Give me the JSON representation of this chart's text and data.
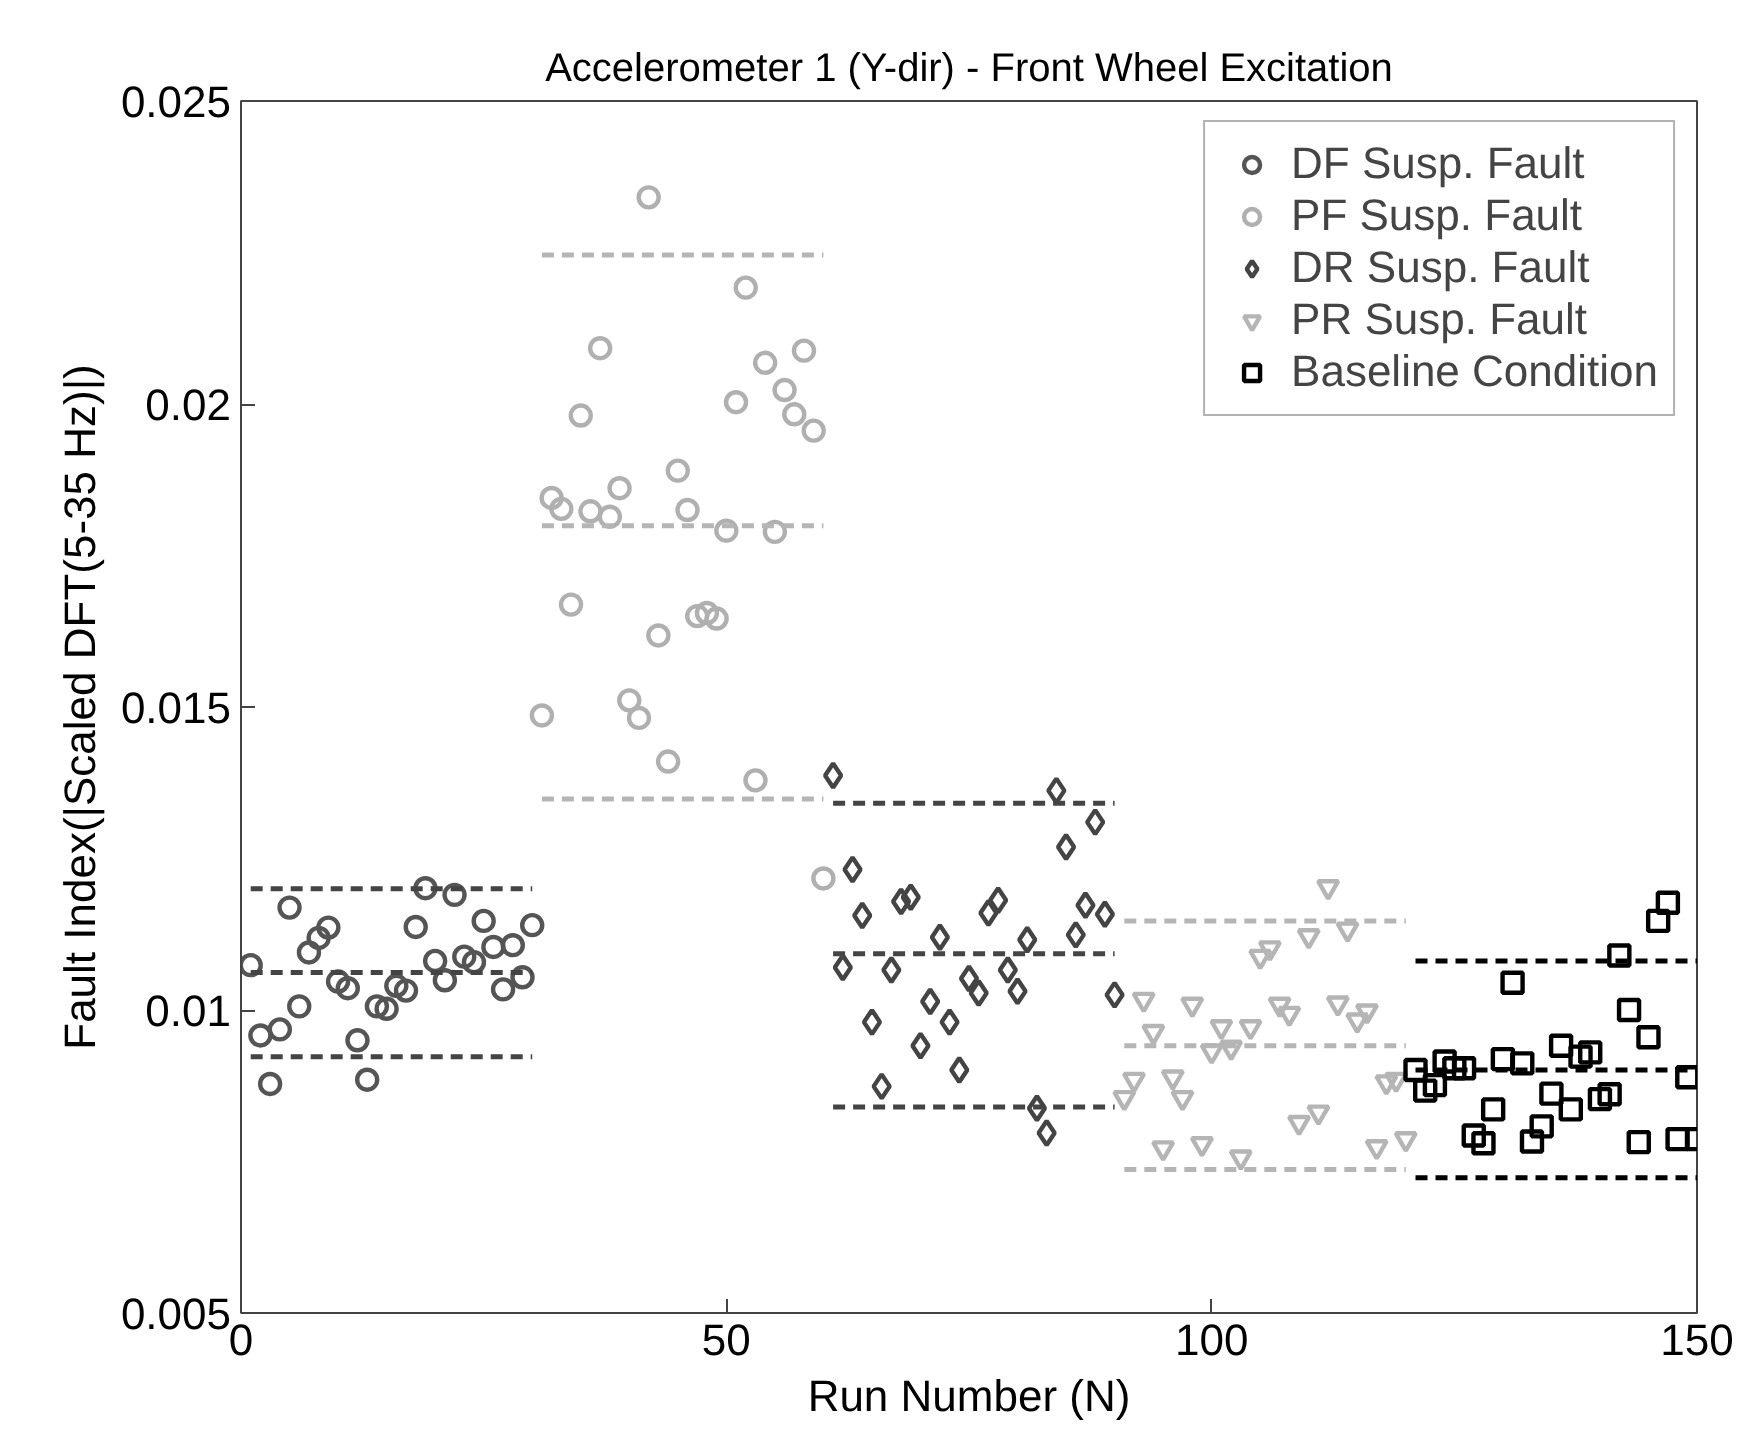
{
  "chart_data": {
    "type": "scatter",
    "title": "Accelerometer 1 (Y-dir) - Front Wheel Excitation",
    "xlabel": "Run Number (N)",
    "ylabel": "Fault Index(|Scaled DFT(5-35 Hz)|)",
    "xlim": [
      0,
      150
    ],
    "xticks": [
      0,
      50,
      100,
      150
    ],
    "ylim": [
      0.005,
      0.025
    ],
    "yticks": [
      0.005,
      0.01,
      0.015,
      0.02,
      0.025
    ],
    "grid": false,
    "legend": "top right",
    "series": [
      {
        "name": "DF Susp. Fault",
        "color": "#555555",
        "marker": "circle",
        "x": [
          1,
          2,
          3,
          4,
          5,
          6,
          7,
          8,
          9,
          10,
          11,
          12,
          13,
          14,
          15,
          16,
          17,
          18,
          19,
          20,
          21,
          22,
          23,
          24,
          25,
          26,
          27,
          28,
          29,
          30
        ],
        "values": [
          0.01074,
          0.00958,
          0.00878,
          0.00968,
          0.01169,
          0.01006,
          0.01095,
          0.01119,
          0.01136,
          0.01047,
          0.01036,
          0.0095,
          0.00885,
          0.01006,
          0.01002,
          0.0104,
          0.01032,
          0.01137,
          0.01201,
          0.01081,
          0.01049,
          0.0119,
          0.01088,
          0.01079,
          0.01147,
          0.01104,
          0.01034,
          0.01107,
          0.01054,
          0.0114
        ]
      },
      {
        "name": "PF Susp. Fault",
        "color": "#b0b0b0",
        "marker": "circle",
        "x": [
          31,
          32,
          33,
          34,
          35,
          36,
          37,
          38,
          39,
          40,
          41,
          42,
          43,
          44,
          45,
          46,
          47,
          48,
          49,
          50,
          51,
          52,
          53,
          54,
          55,
          56,
          57,
          58,
          59,
          60
        ],
        "values": [
          0.01486,
          0.01845,
          0.01827,
          0.01669,
          0.01981,
          0.01823,
          0.02092,
          0.01814,
          0.01861,
          0.01511,
          0.01482,
          0.02341,
          0.01618,
          0.0141,
          0.0189,
          0.01825,
          0.0165,
          0.01655,
          0.01646,
          0.01791,
          0.02003,
          0.02192,
          0.01379,
          0.02068,
          0.01789,
          0.02023,
          0.01983,
          0.02088,
          0.01956,
          0.01217
        ]
      },
      {
        "name": "DR Susp. Fault",
        "color": "#444444",
        "marker": "diamond",
        "x": [
          61,
          62,
          63,
          64,
          65,
          66,
          67,
          68,
          69,
          70,
          71,
          72,
          73,
          74,
          75,
          76,
          77,
          78,
          79,
          80,
          81,
          82,
          83,
          84,
          85,
          86,
          87,
          88,
          89,
          90
        ],
        "values": [
          0.01387,
          0.0107,
          0.01232,
          0.01156,
          0.0098,
          0.00874,
          0.01066,
          0.01179,
          0.01186,
          0.00941,
          0.01014,
          0.0112,
          0.0098,
          0.00901,
          0.01052,
          0.01028,
          0.0116,
          0.01181,
          0.01066,
          0.01031,
          0.01116,
          0.00838,
          0.00797,
          0.01362,
          0.01269,
          0.01124,
          0.01173,
          0.0131,
          0.01158,
          0.01025
        ]
      },
      {
        "name": "PR Susp. Fault",
        "color": "#b5b5b5",
        "marker": "triangle",
        "x": [
          91,
          92,
          93,
          94,
          95,
          96,
          97,
          98,
          99,
          100,
          101,
          102,
          103,
          104,
          105,
          106,
          107,
          108,
          109,
          110,
          111,
          112,
          113,
          114,
          115,
          116,
          117,
          118,
          119,
          120
        ],
        "values": [
          0.00855,
          0.00885,
          0.01017,
          0.00964,
          0.00772,
          0.00889,
          0.00855,
          0.01009,
          0.00779,
          0.00932,
          0.00972,
          0.00938,
          0.00757,
          0.00972,
          0.01088,
          0.01102,
          0.01009,
          0.00994,
          0.00814,
          0.01122,
          0.00831,
          0.01203,
          0.01011,
          0.01133,
          0.00983,
          0.00998,
          0.00774,
          0.00881,
          0.00885,
          0.00787
        ]
      },
      {
        "name": "Baseline Condition",
        "color": "#000000",
        "marker": "square",
        "x": [
          121,
          122,
          123,
          124,
          125,
          126,
          127,
          128,
          129,
          130,
          131,
          132,
          133,
          134,
          135,
          136,
          137,
          138,
          139,
          140,
          141,
          142,
          143,
          144,
          145,
          146,
          147,
          148,
          149,
          150
        ],
        "values": [
          0.00901,
          0.00867,
          0.00876,
          0.00915,
          0.00904,
          0.00904,
          0.00793,
          0.0078,
          0.00836,
          0.00919,
          0.01045,
          0.00912,
          0.00783,
          0.00808,
          0.00862,
          0.00941,
          0.00836,
          0.00923,
          0.0093,
          0.00853,
          0.00861,
          0.0109,
          0.01,
          0.00782,
          0.00955,
          0.01147,
          0.01177,
          0.00787,
          0.00889,
          0.00787
        ]
      },
      {
        "type": "line",
        "color": "#444444",
        "line_style": "dashed",
        "x": [
          1,
          30
        ],
        "values": [
          0.012,
          0.012
        ]
      },
      {
        "type": "line",
        "color": "#444444",
        "line_style": "dashed",
        "x": [
          1,
          30
        ],
        "values": [
          0.01062,
          0.01062
        ]
      },
      {
        "type": "line",
        "color": "#444444",
        "line_style": "dashed",
        "x": [
          1,
          30
        ],
        "values": [
          0.00923,
          0.00923
        ]
      },
      {
        "type": "line",
        "color": "#b5b5b5",
        "line_style": "dashed",
        "x": [
          31,
          60
        ],
        "values": [
          0.02246,
          0.02246
        ]
      },
      {
        "type": "line",
        "color": "#b5b5b5",
        "line_style": "dashed",
        "x": [
          31,
          60
        ],
        "values": [
          0.01799,
          0.01799
        ]
      },
      {
        "type": "line",
        "color": "#b5b5b5",
        "line_style": "dashed",
        "x": [
          31,
          60
        ],
        "values": [
          0.01348,
          0.01348
        ]
      },
      {
        "type": "line",
        "color": "#444444",
        "line_style": "dashed",
        "x": [
          61,
          90
        ],
        "values": [
          0.01341,
          0.01341
        ]
      },
      {
        "type": "line",
        "color": "#444444",
        "line_style": "dashed",
        "x": [
          61,
          90
        ],
        "values": [
          0.01093,
          0.01093
        ]
      },
      {
        "type": "line",
        "color": "#444444",
        "line_style": "dashed",
        "x": [
          61,
          90
        ],
        "values": [
          0.0084,
          0.0084
        ]
      },
      {
        "type": "line",
        "color": "#b5b5b5",
        "line_style": "dashed",
        "x": [
          91,
          120
        ],
        "values": [
          0.01147,
          0.01147
        ]
      },
      {
        "type": "line",
        "color": "#b5b5b5",
        "line_style": "dashed",
        "x": [
          91,
          120
        ],
        "values": [
          0.00941,
          0.00941
        ]
      },
      {
        "type": "line",
        "color": "#b5b5b5",
        "line_style": "dashed",
        "x": [
          91,
          120
        ],
        "values": [
          0.00737,
          0.00737
        ]
      },
      {
        "type": "line",
        "color": "#000000",
        "line_style": "dashed",
        "x": [
          121,
          150
        ],
        "values": [
          0.01081,
          0.01081
        ]
      },
      {
        "type": "line",
        "color": "#000000",
        "line_style": "dashed",
        "x": [
          121,
          150
        ],
        "values": [
          0.00901,
          0.00901
        ]
      },
      {
        "type": "line",
        "color": "#000000",
        "line_style": "dashed",
        "x": [
          121,
          150
        ],
        "values": [
          0.00723,
          0.00723
        ]
      }
    ]
  }
}
